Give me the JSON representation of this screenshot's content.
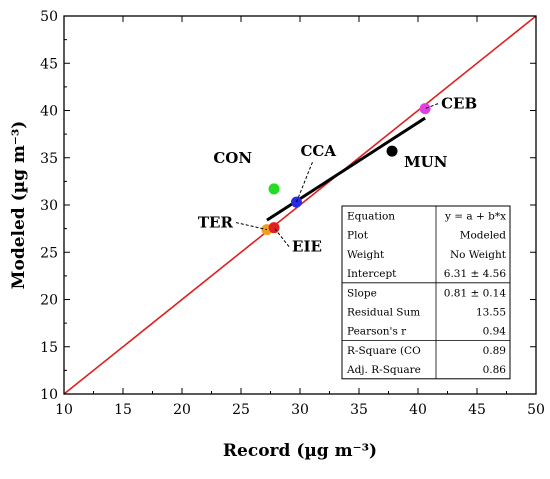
{
  "chart_data": {
    "type": "scatter",
    "title": "",
    "xlabel": "Record (µg m⁻³)",
    "ylabel": "Modeled (µg m⁻³)",
    "xlim": [
      10,
      50
    ],
    "ylim": [
      10,
      50
    ],
    "xticks": [
      10,
      15,
      20,
      25,
      30,
      35,
      40,
      45,
      50
    ],
    "yticks": [
      10,
      15,
      20,
      25,
      30,
      35,
      40,
      45,
      50
    ],
    "grid": false,
    "points": [
      {
        "label": "CEB",
        "x": 40.6,
        "y": 40.2,
        "color": "#e040e0"
      },
      {
        "label": "MUN",
        "x": 37.8,
        "y": 35.7,
        "color": "#000000"
      },
      {
        "label": "CON",
        "x": 27.8,
        "y": 31.7,
        "color": "#22dd22"
      },
      {
        "label": "CCA",
        "x": 29.7,
        "y": 30.3,
        "color": "#2a2ae0"
      },
      {
        "label": "TER",
        "x": 27.2,
        "y": 27.4,
        "color": "#f0a020"
      },
      {
        "label": "EIE",
        "x": 27.8,
        "y": 27.6,
        "color": "#e02020"
      }
    ],
    "identity_line": {
      "x": [
        10,
        50
      ],
      "y": [
        10,
        50
      ],
      "color": "#e02020"
    },
    "fit_line": {
      "x": [
        27.2,
        40.6
      ],
      "y": [
        28.4,
        39.2
      ],
      "color": "#000000"
    },
    "fit_table": [
      [
        "Equation",
        "y = a + b*x"
      ],
      [
        "Plot",
        "Modeled"
      ],
      [
        "Weight",
        "No Weight"
      ],
      [
        "Intercept",
        "6.31 ± 4.56"
      ],
      [
        "Slope",
        "0.81 ± 0.14"
      ],
      [
        "Residual Sum",
        "13.55"
      ],
      [
        "Pearson's r",
        "0.94"
      ],
      [
        "R-Square (CO",
        "0.89"
      ],
      [
        "Adj. R-Square",
        "0.86"
      ]
    ]
  }
}
